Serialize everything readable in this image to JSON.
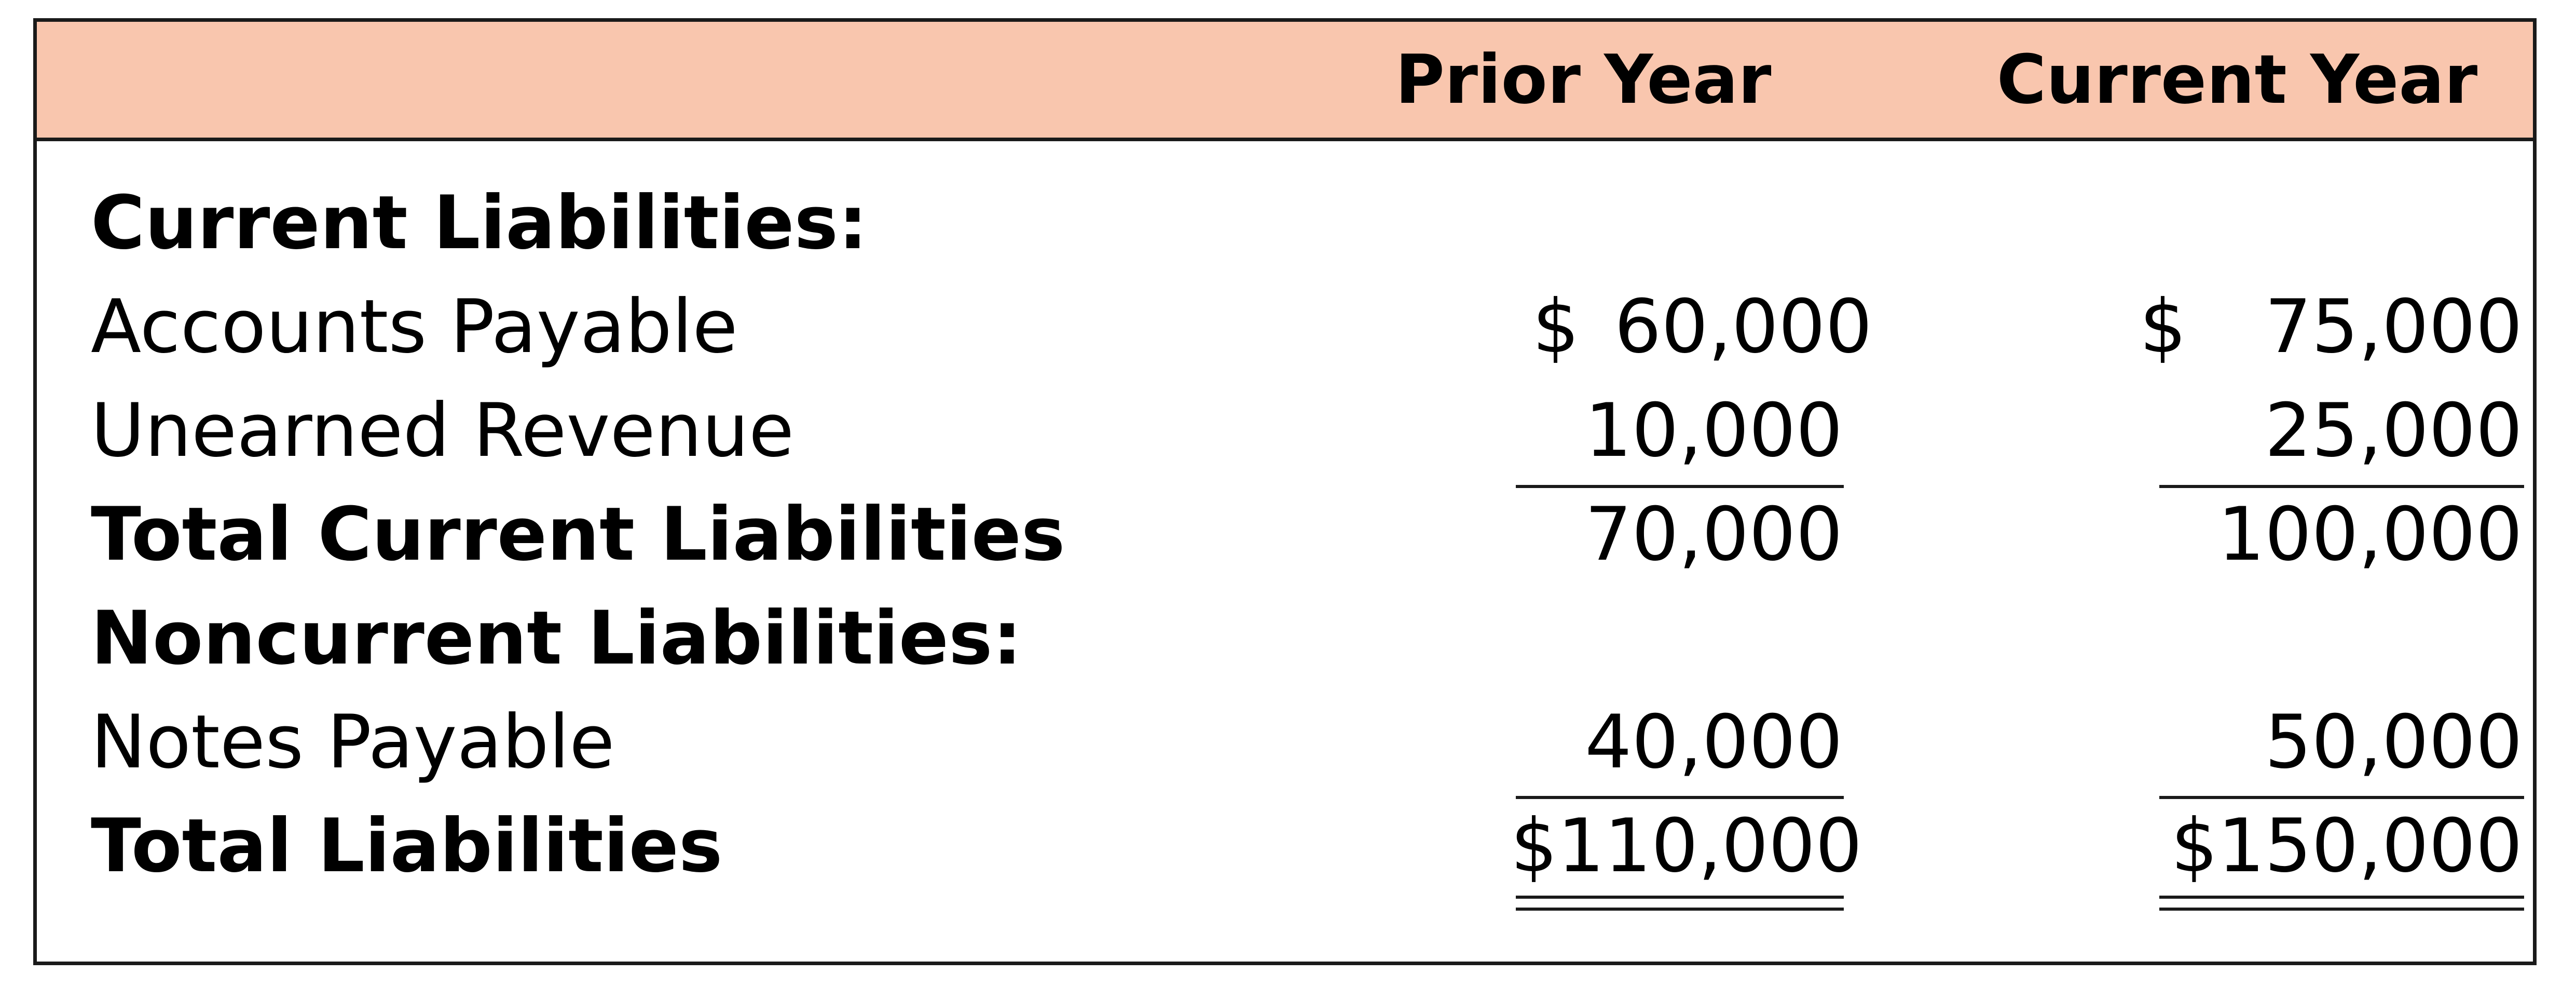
{
  "columns": {
    "prior": "Prior Year",
    "current": "Current Year"
  },
  "sections": {
    "current_heading": "Current Liabilities:",
    "noncurrent_heading": "Noncurrent Liabilities:"
  },
  "rows": {
    "accounts_payable": {
      "label": "Accounts Payable",
      "prior_currency": "$",
      "prior": "60,000",
      "current_currency": "$",
      "current": "75,000"
    },
    "unearned_revenue": {
      "label": "Unearned Revenue",
      "prior": "10,000",
      "current": "25,000"
    },
    "total_current": {
      "label": "Total Current Liabilities",
      "prior": "70,000",
      "current": "100,000"
    },
    "notes_payable": {
      "label": "Notes Payable",
      "prior": "40,000",
      "current": "50,000"
    },
    "total_liabilities": {
      "label": "Total Liabilities",
      "prior": "$110,000",
      "current": "$150,000"
    }
  },
  "colors": {
    "header_fill": "#f9c6ae",
    "border": "#1a1a1a",
    "text": "#000000"
  }
}
